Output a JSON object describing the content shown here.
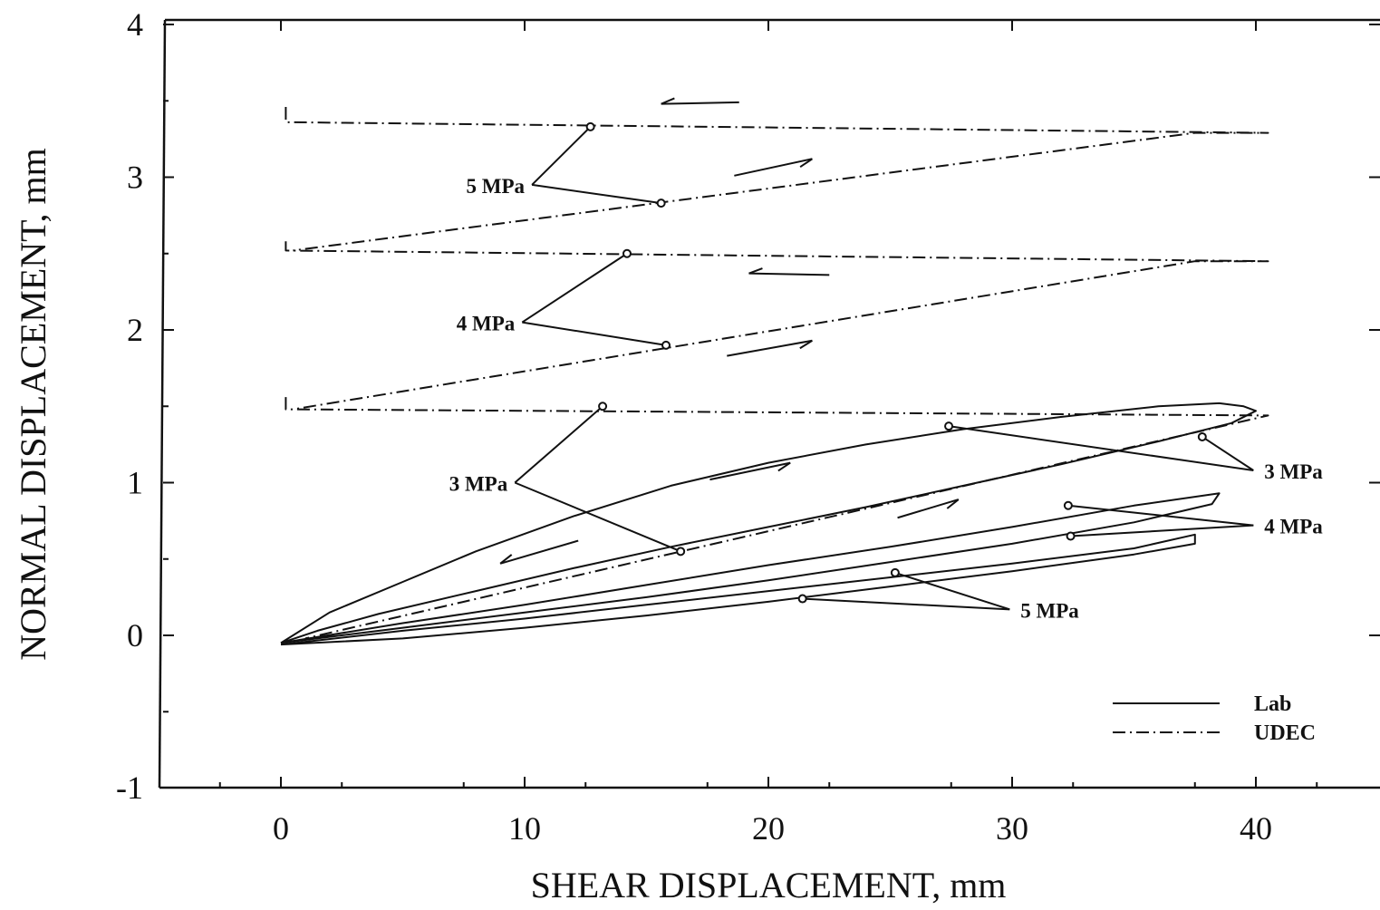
{
  "chart_data": {
    "type": "line",
    "title": "",
    "xlabel": "SHEAR DISPLACEMENT, mm",
    "ylabel": "NORMAL DISPLACEMENT, mm",
    "xlim": [
      -5,
      45
    ],
    "ylim": [
      -1,
      4
    ],
    "x_ticks": [
      0,
      10,
      20,
      30,
      40
    ],
    "y_ticks": [
      -1,
      0,
      1,
      2,
      3,
      4
    ],
    "x_tick_labels": [
      "0",
      "10",
      "20",
      "30",
      "40"
    ],
    "y_tick_labels": [
      "-1",
      "0",
      "1",
      "2",
      "3",
      "4"
    ],
    "grid": false,
    "legend": {
      "placement": "bottom-right",
      "entries": [
        {
          "label": "Lab",
          "style": "solid"
        },
        {
          "label": "UDEC",
          "style": "dash-dot"
        }
      ]
    },
    "series": [
      {
        "name": "Lab",
        "group": "3 MPa",
        "style": "solid",
        "x": [
          0,
          2,
          5,
          8,
          12,
          16,
          20,
          24,
          28,
          32,
          36,
          38.5,
          39.5,
          40,
          39,
          36,
          32,
          28,
          24,
          20,
          16,
          12,
          8,
          4,
          1.5,
          0
        ],
        "y": [
          -0.05,
          0.15,
          0.35,
          0.55,
          0.78,
          0.98,
          1.13,
          1.25,
          1.35,
          1.43,
          1.5,
          1.52,
          1.5,
          1.47,
          1.39,
          1.27,
          1.12,
          0.98,
          0.84,
          0.71,
          0.58,
          0.44,
          0.29,
          0.14,
          0.03,
          -0.05
        ]
      },
      {
        "name": "Lab",
        "group": "4 MPa",
        "style": "solid",
        "x": [
          0,
          5,
          10,
          15,
          20,
          25,
          30,
          35,
          38.5,
          38.2,
          35,
          30,
          25,
          20,
          15,
          10,
          5,
          0
        ],
        "y": [
          -0.05,
          0.08,
          0.2,
          0.33,
          0.46,
          0.58,
          0.71,
          0.85,
          0.93,
          0.86,
          0.74,
          0.6,
          0.48,
          0.36,
          0.25,
          0.15,
          0.05,
          -0.05
        ]
      },
      {
        "name": "Lab",
        "group": "5 MPa",
        "style": "solid",
        "x": [
          0,
          5,
          10,
          15,
          20,
          25,
          30,
          35,
          37.5,
          37.5,
          35,
          30,
          25,
          20,
          15,
          10,
          5,
          0
        ],
        "y": [
          -0.06,
          0.03,
          0.11,
          0.2,
          0.29,
          0.38,
          0.47,
          0.57,
          0.66,
          0.6,
          0.53,
          0.42,
          0.32,
          0.22,
          0.13,
          0.05,
          -0.02,
          -0.06
        ]
      },
      {
        "name": "UDEC",
        "group": "3 MPa",
        "style": "dash-dot",
        "x": [
          0.2,
          0.2,
          0.5,
          40.5,
          40.5,
          1
        ],
        "y": [
          1.56,
          1.48,
          1.48,
          1.44,
          1.44,
          -0.02
        ]
      },
      {
        "name": "UDEC",
        "group": "4 MPa",
        "style": "dash-dot",
        "x": [
          0.2,
          0.2,
          40.5,
          37.5,
          0.5
        ],
        "y": [
          2.58,
          2.52,
          2.45,
          2.45,
          1.48
        ]
      },
      {
        "name": "UDEC",
        "group": "5 MPa",
        "style": "dash-dot",
        "x": [
          0.2,
          0.2,
          40.5,
          37.5,
          0.5
        ],
        "y": [
          3.46,
          3.36,
          3.29,
          3.29,
          2.52
        ]
      }
    ],
    "annotations": [
      {
        "text": "5 MPa",
        "label_at": [
          10.3,
          2.95
        ],
        "points": [
          [
            12.7,
            3.33
          ],
          [
            15.6,
            2.83
          ]
        ]
      },
      {
        "text": "4 MPa",
        "label_at": [
          9.9,
          2.05
        ],
        "points": [
          [
            14.2,
            2.5
          ],
          [
            15.8,
            1.9
          ]
        ]
      },
      {
        "text": "3 MPa",
        "label_at": [
          9.6,
          1.0
        ],
        "points": [
          [
            13.2,
            1.5
          ],
          [
            16.4,
            0.55
          ]
        ]
      },
      {
        "text": "3 MPa",
        "label_at": [
          39.9,
          1.08
        ],
        "points": [
          [
            27.4,
            1.37
          ],
          [
            37.8,
            1.3
          ]
        ]
      },
      {
        "text": "4 MPa",
        "label_at": [
          39.9,
          0.72
        ],
        "points": [
          [
            32.3,
            0.85
          ],
          [
            32.4,
            0.65
          ]
        ]
      },
      {
        "text": "5 MPa",
        "label_at": [
          29.9,
          0.17
        ],
        "points": [
          [
            25.2,
            0.41
          ],
          [
            21.4,
            0.24
          ]
        ]
      }
    ],
    "direction_arrows": [
      {
        "from": [
          18.8,
          3.49
        ],
        "to": [
          15.6,
          3.48
        ]
      },
      {
        "from": [
          18.6,
          3.01
        ],
        "to": [
          21.8,
          3.12
        ]
      },
      {
        "from": [
          22.5,
          2.36
        ],
        "to": [
          19.2,
          2.37
        ]
      },
      {
        "from": [
          18.3,
          1.83
        ],
        "to": [
          21.8,
          1.93
        ]
      },
      {
        "from": [
          17.6,
          1.02
        ],
        "to": [
          20.9,
          1.13
        ]
      },
      {
        "from": [
          12.2,
          0.62
        ],
        "to": [
          9.0,
          0.47
        ]
      },
      {
        "from": [
          25.3,
          0.77
        ],
        "to": [
          27.8,
          0.89
        ]
      }
    ]
  }
}
